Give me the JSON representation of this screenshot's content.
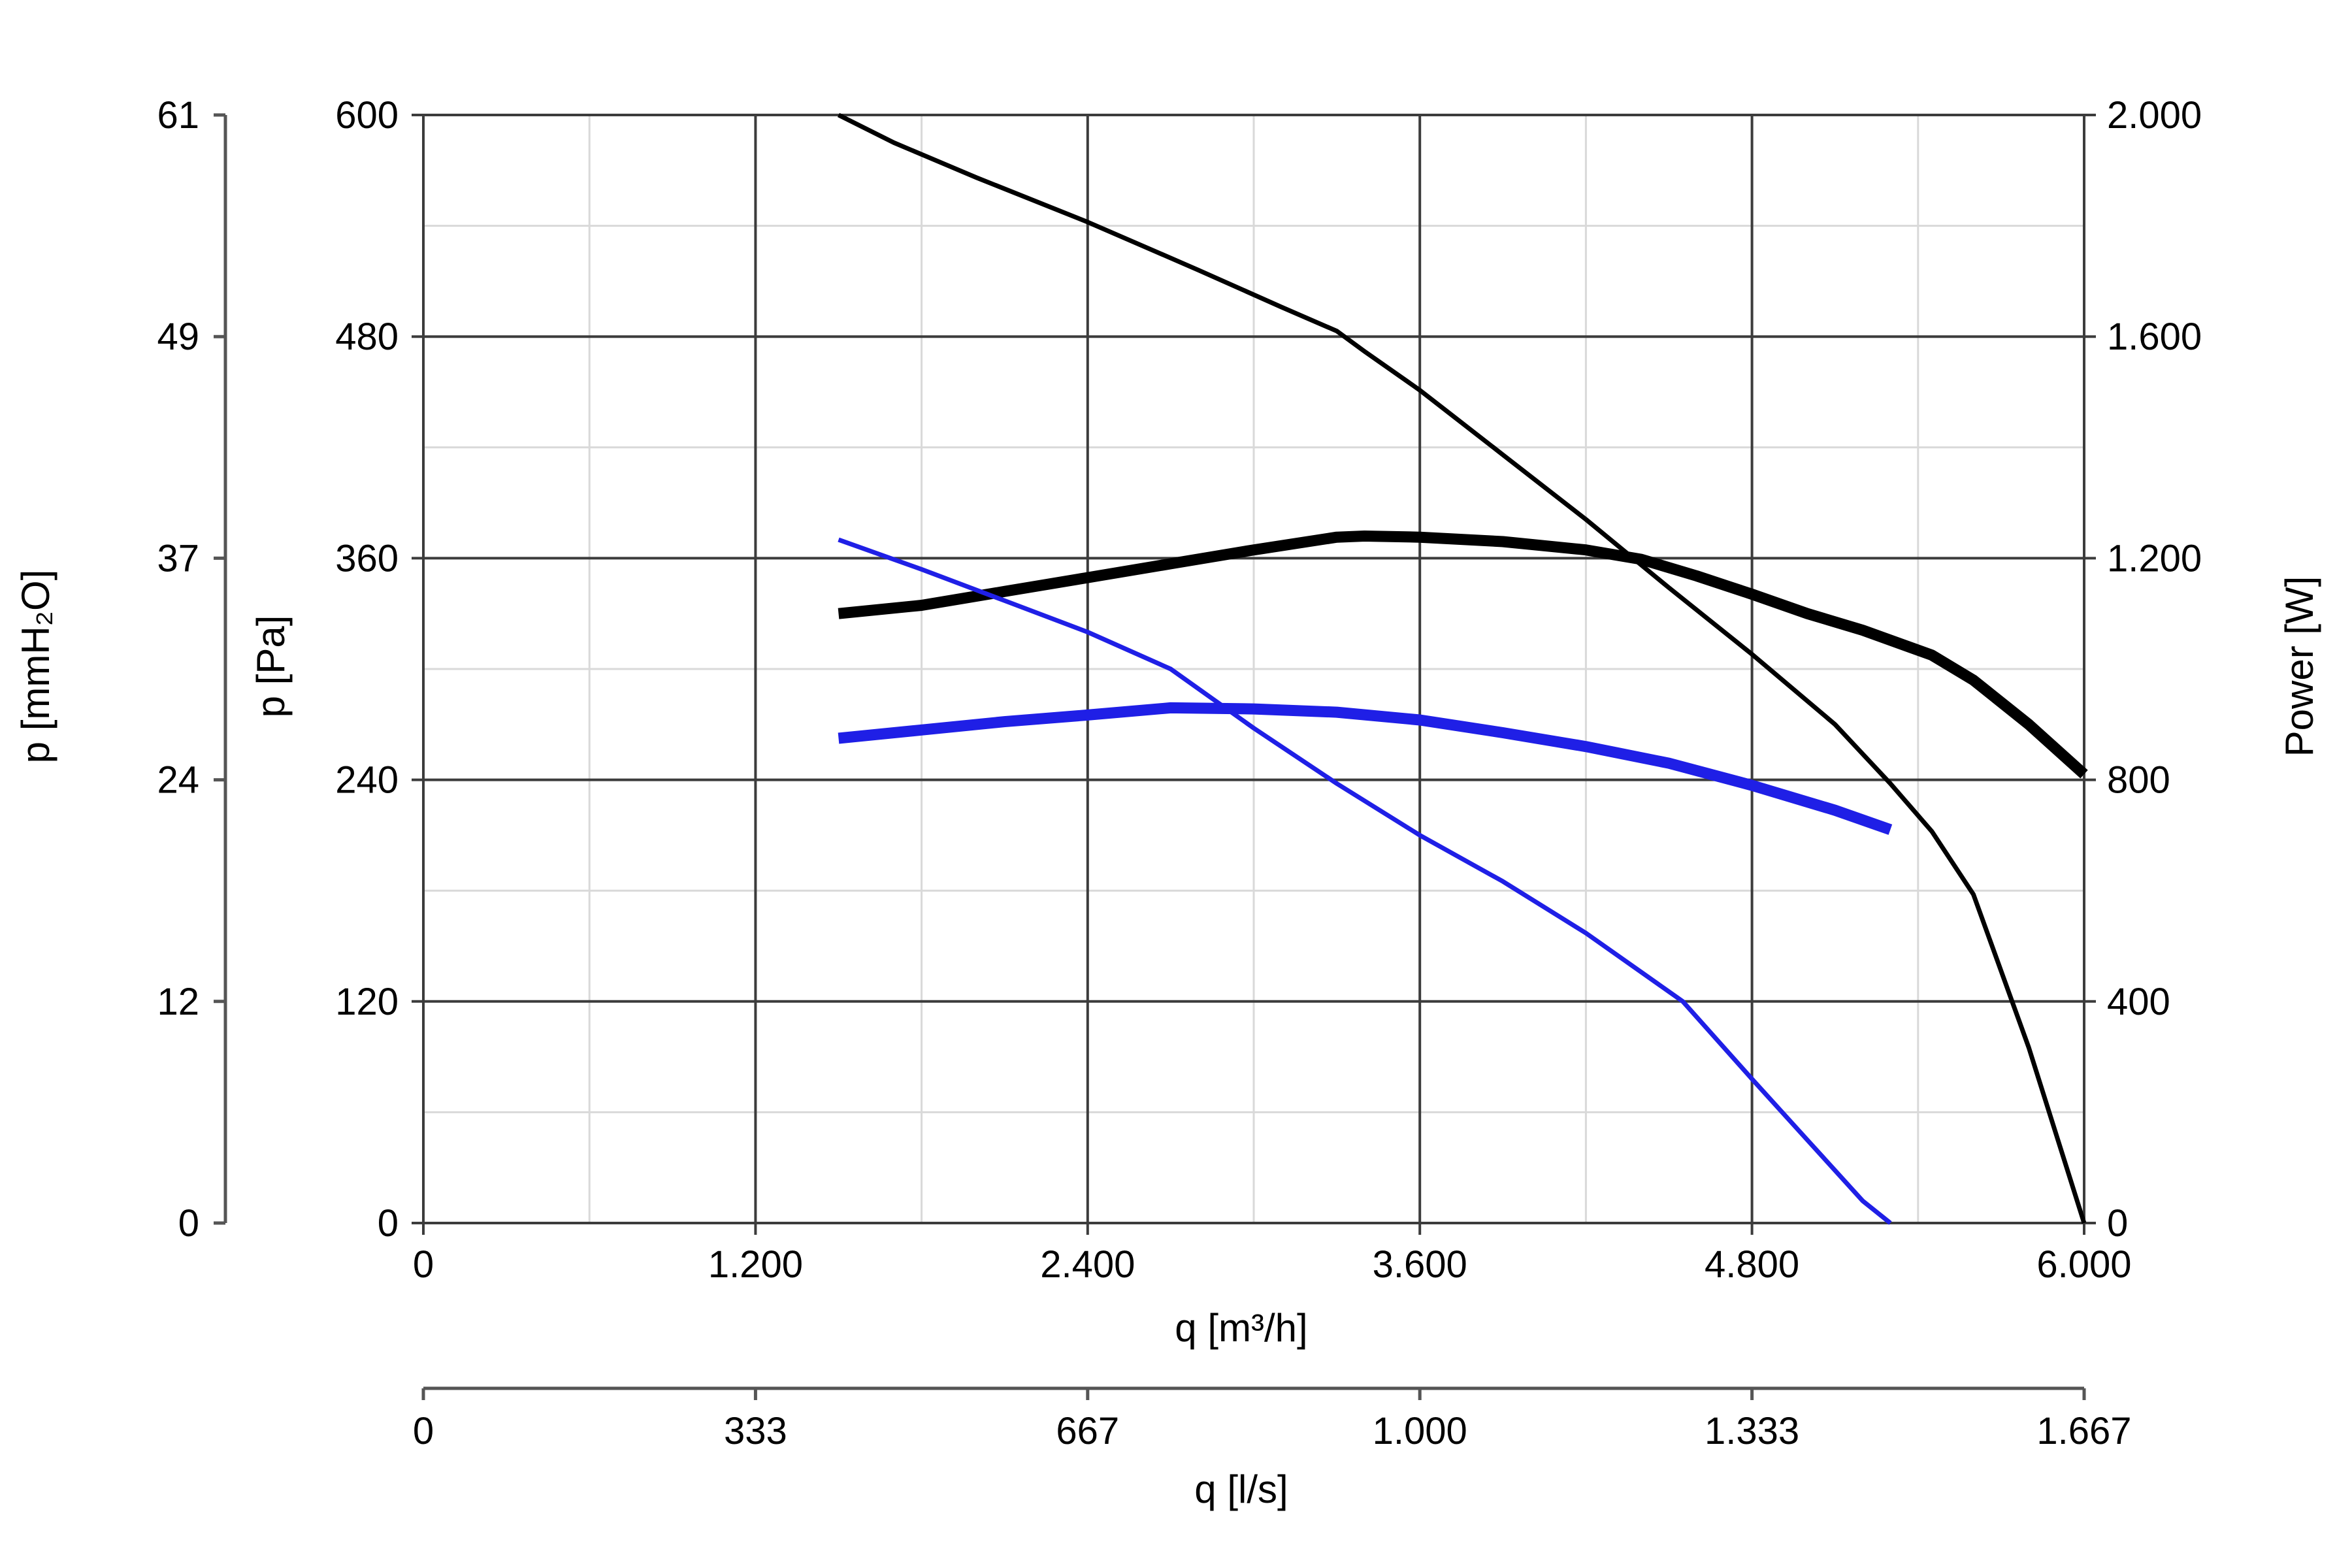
{
  "chart_data": {
    "type": "line",
    "x_unit_primary": "m³/h",
    "xlabel": "q [m³/h]",
    "xlim": [
      0,
      6000
    ],
    "x_ticks": [
      "0",
      "1.200",
      "2.400",
      "3.600",
      "4.800",
      "6.000"
    ],
    "x_tick_values": [
      0,
      1200,
      2400,
      3600,
      4800,
      6000
    ],
    "x2label": "q [l/s]",
    "x2_ticks": [
      "0",
      "333",
      "667",
      "1.000",
      "1.333",
      "1.667"
    ],
    "ylabel": "p [Pa]",
    "ylim": [
      0,
      600
    ],
    "y_ticks": [
      "0",
      "120",
      "240",
      "360",
      "480",
      "600"
    ],
    "y_tick_values": [
      0,
      120,
      240,
      360,
      480,
      600
    ],
    "y2label": "p [mmH₂O]",
    "y2_ticks": [
      "0",
      "12",
      "24",
      "37",
      "49",
      "61"
    ],
    "y3label": "Power [W]",
    "y3lim": [
      0,
      2000
    ],
    "y3_ticks": [
      "0",
      "400",
      "800",
      "1.200",
      "1.600",
      "2.000"
    ],
    "grid": true,
    "colors": {
      "black": "#000000",
      "blue": "#1f1fe6",
      "grid_major": "#3c3c3c",
      "grid_minor": "#d9d9d9"
    },
    "series": [
      {
        "axis": "pressure",
        "color": "#000000",
        "weight": "thin",
        "x": [
          1500,
          1700,
          2000,
          2400,
          2800,
          3100,
          3300,
          3400,
          3600,
          3900,
          4200,
          4500,
          4800,
          5100,
          5300,
          5450,
          5600,
          5800,
          6000
        ],
        "y": [
          600,
          585,
          566,
          542,
          516,
          496,
          483,
          472,
          451,
          416,
          381,
          344,
          308,
          270,
          238,
          212,
          178,
          95,
          0
        ]
      },
      {
        "axis": "power",
        "color": "#000000",
        "weight": "thick",
        "x": [
          1500,
          1800,
          2100,
          2400,
          2700,
          3000,
          3300,
          3400,
          3600,
          3900,
          4200,
          4400,
          4600,
          4800,
          5000,
          5200,
          5450,
          5600,
          5800,
          6000
        ],
        "y": [
          1100,
          1115,
          1140,
          1165,
          1190,
          1215,
          1238,
          1240,
          1238,
          1230,
          1215,
          1198,
          1168,
          1135,
          1100,
          1070,
          1025,
          980,
          900,
          810
        ]
      },
      {
        "axis": "pressure",
        "color": "#1f1fe6",
        "weight": "thin",
        "x": [
          1500,
          1800,
          2100,
          2400,
          2700,
          3000,
          3300,
          3600,
          3900,
          4200,
          4550,
          4800,
          5000,
          5200,
          5300
        ],
        "y": [
          370,
          354,
          337,
          320,
          300,
          268,
          238,
          210,
          185,
          157,
          120,
          78,
          45,
          12,
          0
        ]
      },
      {
        "axis": "power",
        "color": "#1f1fe6",
        "weight": "thick",
        "x": [
          1500,
          1800,
          2100,
          2400,
          2700,
          3000,
          3300,
          3600,
          3900,
          4200,
          4500,
          4800,
          5100,
          5300
        ],
        "y": [
          875,
          890,
          905,
          917,
          930,
          928,
          922,
          908,
          885,
          860,
          830,
          790,
          745,
          710
        ]
      }
    ]
  }
}
